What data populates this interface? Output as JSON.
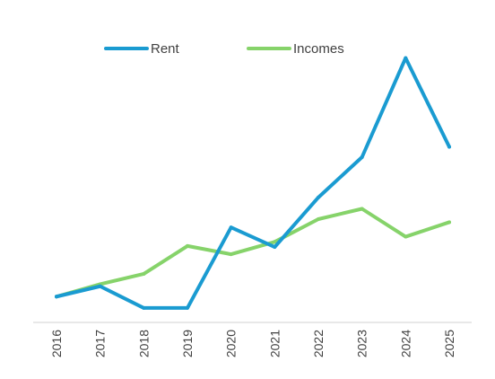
{
  "chart_data": {
    "type": "line",
    "title": "",
    "xlabel": "",
    "ylabel": "",
    "x": [
      "2016",
      "2017",
      "2018",
      "2019",
      "2020",
      "2021",
      "2022",
      "2023",
      "2024",
      "2025"
    ],
    "ylim": [
      0,
      260
    ],
    "y_axis_visible": false,
    "grid": false,
    "legend": "top",
    "series": [
      {
        "name": "Rent",
        "color": "#1a9bd1",
        "values": [
          25,
          35,
          14,
          14,
          92,
          73,
          121,
          160,
          256,
          170
        ]
      },
      {
        "name": "Incomes",
        "color": "#86d36a",
        "values": [
          25,
          37,
          47,
          74,
          66,
          78,
          100,
          110,
          83,
          97
        ]
      }
    ]
  }
}
